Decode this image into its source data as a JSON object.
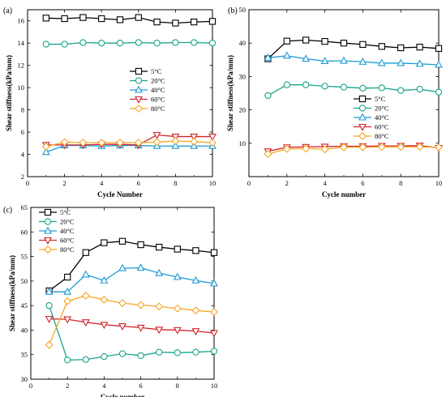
{
  "chart_data": [
    {
      "type": "line",
      "panel_label": "(a)",
      "xlabel": "Cycle Number",
      "ylabel": "Shear stiffness(kPa/mm)",
      "xlim": [
        0,
        10
      ],
      "ylim": [
        2,
        17
      ],
      "xticks": [
        0,
        2,
        4,
        6,
        8,
        10
      ],
      "yticks": [
        2,
        4,
        6,
        8,
        10,
        12,
        14,
        16
      ],
      "x": [
        1,
        2,
        3,
        4,
        5,
        6,
        7,
        8,
        9,
        10
      ],
      "legend_position": "center-right",
      "series": [
        {
          "name": "5°C",
          "color": "#000000",
          "marker": "square",
          "values": [
            16.25,
            16.2,
            16.3,
            16.2,
            16.1,
            16.3,
            15.9,
            15.8,
            15.9,
            15.95
          ]
        },
        {
          "name": "20°C",
          "color": "#1aa589",
          "marker": "circle",
          "values": [
            13.9,
            13.9,
            14.05,
            14.0,
            14.0,
            14.05,
            14.0,
            14.05,
            14.05,
            14.0
          ]
        },
        {
          "name": "40°C",
          "color": "#1c9ad6",
          "marker": "triangle-up",
          "values": [
            4.2,
            4.8,
            4.8,
            4.75,
            4.8,
            4.8,
            4.75,
            4.75,
            4.75,
            4.75
          ]
        },
        {
          "name": "60°C",
          "color": "#d2232a",
          "marker": "triangle-down",
          "values": [
            4.85,
            4.85,
            4.85,
            4.9,
            4.9,
            4.85,
            5.75,
            5.6,
            5.6,
            5.6
          ]
        },
        {
          "name": "80°C",
          "color": "#f5a623",
          "marker": "diamond",
          "values": [
            4.7,
            5.1,
            5.05,
            5.05,
            5.05,
            5.05,
            5.1,
            5.2,
            5.15,
            5.05
          ]
        }
      ]
    },
    {
      "type": "line",
      "panel_label": "(b)",
      "xlabel": "Cycle number",
      "ylabel": "Shear stiffness(kPa/mm)",
      "xlim": [
        0,
        10
      ],
      "ylim": [
        0,
        50
      ],
      "xticks": [
        0,
        2,
        4,
        6,
        8,
        10
      ],
      "yticks": [
        10,
        20,
        30,
        40,
        50
      ],
      "x": [
        1,
        2,
        3,
        4,
        5,
        6,
        7,
        8,
        9,
        10
      ],
      "legend_position": "center-right",
      "series": [
        {
          "name": "5°C",
          "color": "#000000",
          "marker": "square",
          "values": [
            35.3,
            40.6,
            40.9,
            40.5,
            40.0,
            39.6,
            39.0,
            38.6,
            38.8,
            38.4
          ]
        },
        {
          "name": "20°C",
          "color": "#1aa589",
          "marker": "circle",
          "values": [
            24.3,
            27.5,
            27.5,
            27.1,
            26.8,
            26.5,
            26.6,
            25.8,
            26.2,
            25.3
          ]
        },
        {
          "name": "40°C",
          "color": "#1c9ad6",
          "marker": "triangle-up",
          "values": [
            35.6,
            36.2,
            35.3,
            34.6,
            34.7,
            34.4,
            34.0,
            34.0,
            33.8,
            33.5
          ]
        },
        {
          "name": "60°C",
          "color": "#d2232a",
          "marker": "triangle-down",
          "values": [
            7.6,
            8.8,
            8.9,
            9.0,
            9.1,
            9.1,
            9.2,
            9.2,
            9.3,
            8.6
          ]
        },
        {
          "name": "80°C",
          "color": "#f5a623",
          "marker": "diamond",
          "values": [
            6.8,
            8.3,
            8.4,
            8.2,
            8.8,
            8.8,
            8.9,
            8.9,
            8.9,
            8.8
          ]
        }
      ]
    },
    {
      "type": "line",
      "panel_label": "(c)",
      "xlabel": "Cycle number",
      "ylabel": "Shear stiffness(kPa/mm)",
      "xlim": [
        0,
        10
      ],
      "ylim": [
        30,
        65
      ],
      "xticks": [
        0,
        2,
        4,
        6,
        8,
        10
      ],
      "yticks": [
        30,
        35,
        40,
        45,
        50,
        55,
        60,
        65
      ],
      "x": [
        1,
        2,
        3,
        4,
        5,
        6,
        7,
        8,
        9,
        10
      ],
      "legend_position": "top-left",
      "series": [
        {
          "name": "5°C",
          "color": "#000000",
          "marker": "square",
          "values": [
            48.0,
            50.8,
            55.8,
            57.8,
            58.1,
            57.4,
            56.9,
            56.5,
            56.2,
            55.8
          ]
        },
        {
          "name": "20°C",
          "color": "#1aa589",
          "marker": "circle",
          "values": [
            45.0,
            33.9,
            34.0,
            34.6,
            35.2,
            34.8,
            35.5,
            35.4,
            35.5,
            35.7
          ]
        },
        {
          "name": "40°C",
          "color": "#1c9ad6",
          "marker": "triangle-up",
          "values": [
            47.8,
            47.8,
            51.3,
            50.1,
            52.6,
            52.7,
            51.6,
            50.8,
            50.1,
            49.5
          ]
        },
        {
          "name": "60°C",
          "color": "#d2232a",
          "marker": "triangle-down",
          "values": [
            42.3,
            42.2,
            41.6,
            41.1,
            40.8,
            40.5,
            40.1,
            40.0,
            39.8,
            39.4
          ]
        },
        {
          "name": "80°C",
          "color": "#f5a623",
          "marker": "diamond",
          "values": [
            37.0,
            45.9,
            47.0,
            46.2,
            45.5,
            45.1,
            44.8,
            44.4,
            44.0,
            43.7
          ]
        }
      ]
    }
  ]
}
